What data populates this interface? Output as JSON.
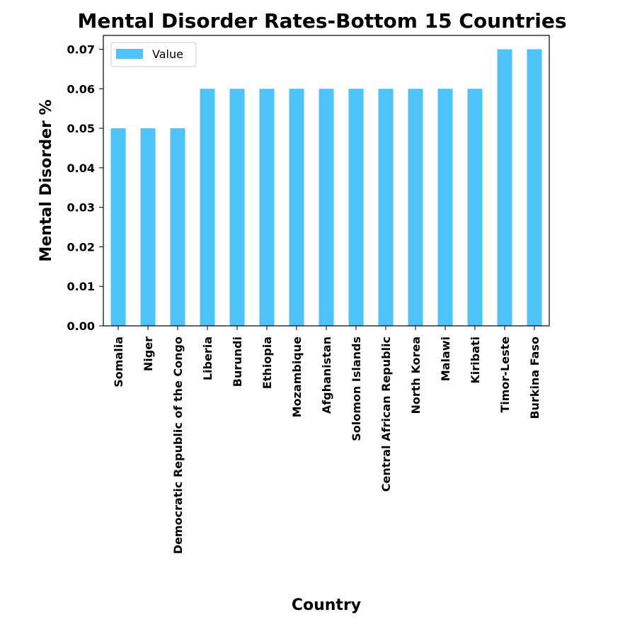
{
  "chart_data": {
    "type": "bar",
    "title": "Mental Disorder Rates-Bottom 15 Countries",
    "xlabel": "Country",
    "ylabel": "Mental Disorder %",
    "categories": [
      "Somalia",
      "Niger",
      "Democratic Republic of the Congo",
      "Liberia",
      "Burundi",
      "Ethiopia",
      "Mozambique",
      "Afghanistan",
      "Solomon Islands",
      "Central African Republic",
      "North Korea",
      "Malawi",
      "Kiribati",
      "Timor-Leste",
      "Burkina Faso"
    ],
    "series": [
      {
        "name": "Value",
        "color": "#4dc3fa",
        "values": [
          0.05,
          0.05,
          0.05,
          0.06,
          0.06,
          0.06,
          0.06,
          0.06,
          0.06,
          0.06,
          0.06,
          0.06,
          0.06,
          0.07,
          0.07
        ]
      }
    ],
    "yticks": [
      "0.00",
      "0.01",
      "0.02",
      "0.03",
      "0.04",
      "0.05",
      "0.06",
      "0.07"
    ],
    "ylim": [
      0,
      0.0735
    ],
    "grid": false,
    "legend_position": "top-left"
  }
}
